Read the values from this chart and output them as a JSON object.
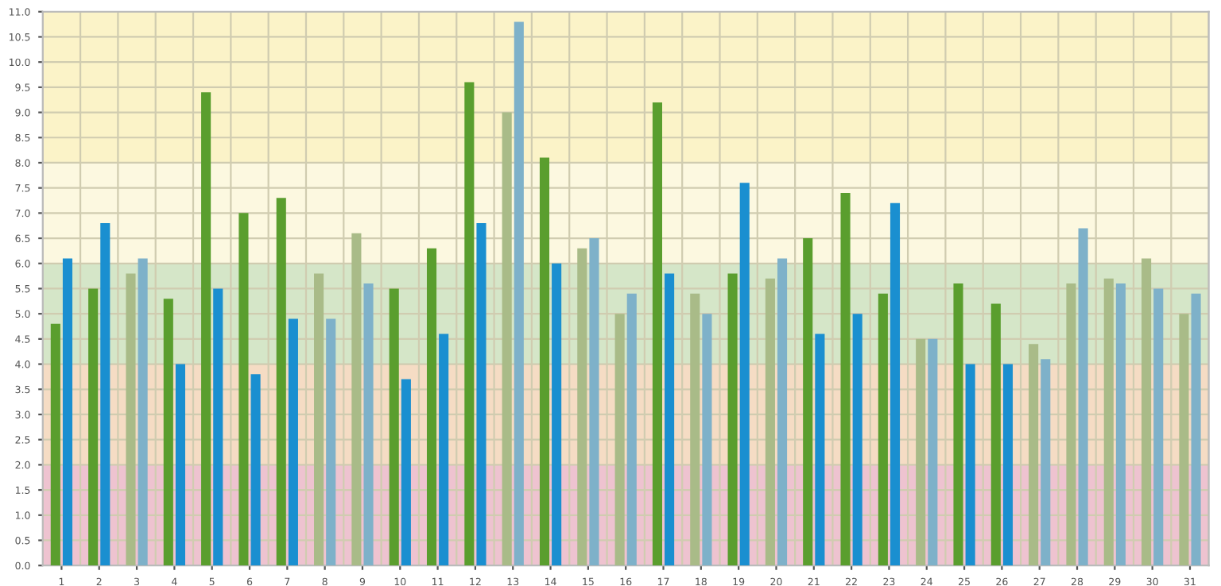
{
  "chart_data": {
    "type": "bar",
    "categories": [
      "1",
      "2",
      "3",
      "4",
      "5",
      "6",
      "7",
      "8",
      "9",
      "10",
      "11",
      "12",
      "13",
      "14",
      "15",
      "16",
      "17",
      "18",
      "19",
      "20",
      "21",
      "22",
      "23",
      "24",
      "25",
      "26",
      "27",
      "28",
      "29",
      "30",
      "31"
    ],
    "series": [
      {
        "colors": [
          "#5a9e2e",
          "#5a9e2e",
          "#a9bb88",
          "#5a9e2e",
          "#5a9e2e",
          "#5a9e2e",
          "#5a9e2e",
          "#a9bb88",
          "#a9bb88",
          "#5a9e2e",
          "#5a9e2e",
          "#5a9e2e",
          "#a9bb88",
          "#5a9e2e",
          "#a9bb88",
          "#a9bb88",
          "#5a9e2e",
          "#a9bb88",
          "#5a9e2e",
          "#a9bb88",
          "#5a9e2e",
          "#5a9e2e",
          "#5a9e2e",
          "#a9bb88",
          "#5a9e2e",
          "#5a9e2e",
          "#a9bb88",
          "#a9bb88",
          "#a9bb88",
          "#a9bb88",
          "#a9bb88"
        ],
        "values": [
          4.8,
          5.5,
          5.8,
          5.3,
          9.4,
          7.0,
          7.3,
          5.8,
          6.6,
          5.5,
          6.3,
          9.6,
          9.0,
          8.1,
          6.3,
          5.0,
          9.2,
          5.4,
          5.8,
          5.7,
          6.5,
          7.4,
          5.4,
          4.5,
          5.6,
          5.2,
          4.4,
          5.6,
          5.7,
          6.1,
          5.0
        ]
      },
      {
        "colors": [
          "#1a8fd0",
          "#1a8fd0",
          "#7eb1c9",
          "#1a8fd0",
          "#1a8fd0",
          "#1a8fd0",
          "#1a8fd0",
          "#7eb1c9",
          "#7eb1c9",
          "#1a8fd0",
          "#1a8fd0",
          "#1a8fd0",
          "#7eb1c9",
          "#1a8fd0",
          "#7eb1c9",
          "#7eb1c9",
          "#1a8fd0",
          "#7eb1c9",
          "#1a8fd0",
          "#7eb1c9",
          "#1a8fd0",
          "#1a8fd0",
          "#1a8fd0",
          "#7eb1c9",
          "#1a8fd0",
          "#1a8fd0",
          "#7eb1c9",
          "#7eb1c9",
          "#7eb1c9",
          "#7eb1c9",
          "#7eb1c9"
        ],
        "values": [
          6.1,
          6.8,
          6.1,
          4.0,
          5.5,
          3.8,
          4.9,
          4.9,
          5.6,
          3.7,
          4.6,
          6.8,
          10.8,
          6.0,
          6.5,
          5.4,
          5.8,
          5.0,
          7.6,
          6.1,
          4.6,
          5.0,
          7.2,
          4.5,
          4.0,
          4.0,
          4.1,
          6.7,
          5.6,
          5.5,
          5.4
        ]
      }
    ],
    "ylim": [
      0,
      11
    ],
    "yticks": [
      {
        "value": 0,
        "label": "0.0"
      },
      {
        "value": 0.5,
        "label": "0.5"
      },
      {
        "value": 1,
        "label": "1.0"
      },
      {
        "value": 1.5,
        "label": "1.5"
      },
      {
        "value": 2,
        "label": "2.0"
      },
      {
        "value": 2.5,
        "label": "2.5"
      },
      {
        "value": 3,
        "label": "3.0"
      },
      {
        "value": 3.5,
        "label": "3.5"
      },
      {
        "value": 4,
        "label": "4.0"
      },
      {
        "value": 4.5,
        "label": "4.5"
      },
      {
        "value": 5,
        "label": "5.0"
      },
      {
        "value": 5.5,
        "label": "5.5"
      },
      {
        "value": 6,
        "label": "6.0"
      },
      {
        "value": 6.5,
        "label": "6.5"
      },
      {
        "value": 7,
        "label": "7.0"
      },
      {
        "value": 7.5,
        "label": "7.5"
      },
      {
        "value": 8,
        "label": "8.0"
      },
      {
        "value": 8.5,
        "label": "8.5"
      },
      {
        "value": 9,
        "label": "9.0"
      },
      {
        "value": 9.5,
        "label": "9.5"
      },
      {
        "value": 10,
        "label": "10.0"
      },
      {
        "value": 10.5,
        "label": "10.5"
      },
      {
        "value": 11,
        "label": "11.0"
      }
    ],
    "bands": [
      {
        "axis": "y",
        "from": 0,
        "to": 2,
        "color": "#eec3d0"
      },
      {
        "axis": "y",
        "from": 2,
        "to": 4,
        "color": "#f5dcc4"
      },
      {
        "axis": "y",
        "from": 4,
        "to": 6,
        "color": "#d5e6c8"
      },
      {
        "axis": "y",
        "from": 6,
        "to": 8,
        "color": "#fcf8e0"
      },
      {
        "axis": "y",
        "from": 8,
        "to": 11,
        "color": "#fbf3c8"
      }
    ],
    "grid": true
  }
}
